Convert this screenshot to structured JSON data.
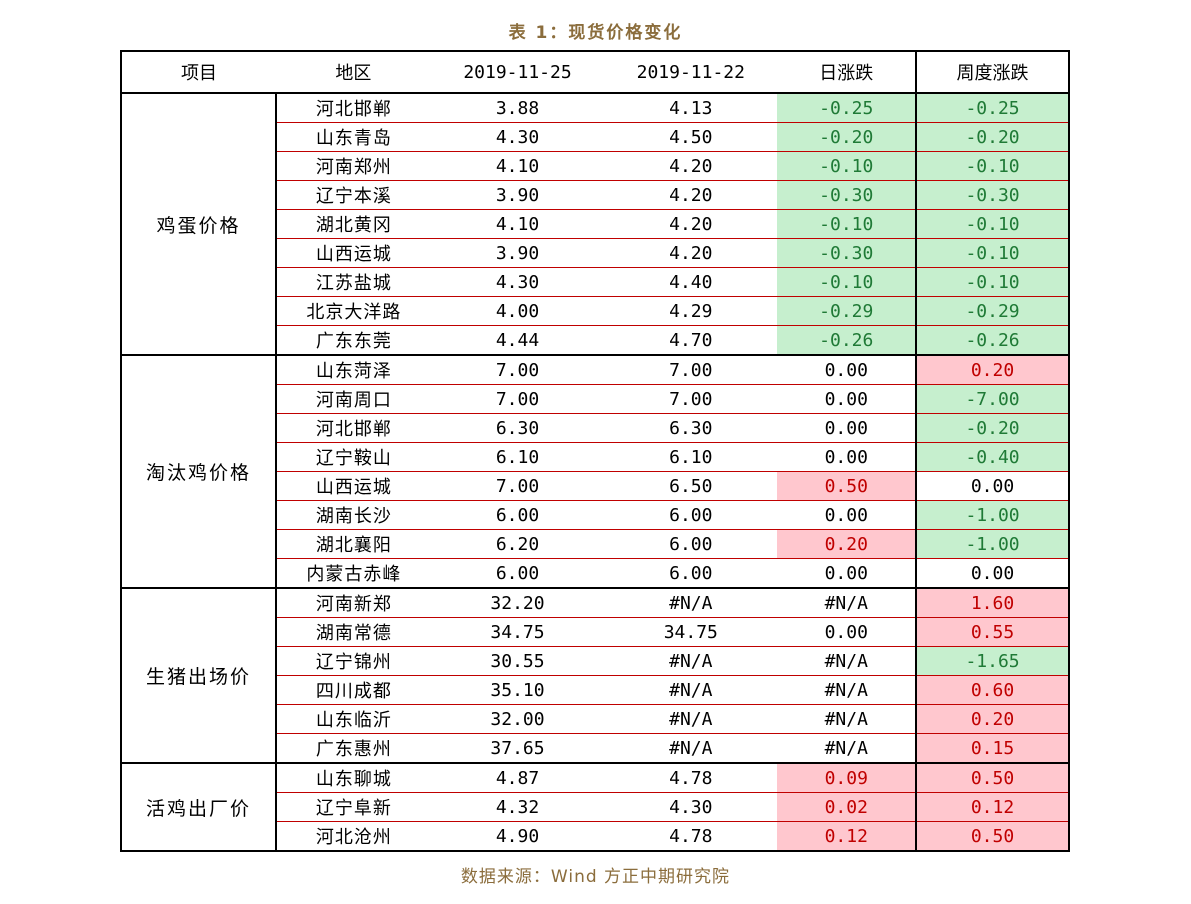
{
  "title": "表 1：现货价格变化",
  "source": "数据来源：Wind 方正中期研究院",
  "headers": {
    "item": "项目",
    "region": "地区",
    "date1": "2019-11-25",
    "date2": "2019-11-22",
    "daily": "日涨跌",
    "weekly": "周度涨跌"
  },
  "colors": {
    "negative_bg": "#c6efce",
    "negative_text": "#1f7a36",
    "positive_bg": "#ffc7ce",
    "positive_text": "#c00000",
    "title_text": "#8b6d3c",
    "row_divider": "#c00000"
  },
  "groups": [
    {
      "name": "鸡蛋价格",
      "rows": [
        {
          "region": "河北邯郸",
          "v1": "3.88",
          "v2": "4.13",
          "daily": "-0.25",
          "daily_dir": "neg",
          "weekly": "-0.25",
          "weekly_dir": "neg"
        },
        {
          "region": "山东青岛",
          "v1": "4.30",
          "v2": "4.50",
          "daily": "-0.20",
          "daily_dir": "neg",
          "weekly": "-0.20",
          "weekly_dir": "neg"
        },
        {
          "region": "河南郑州",
          "v1": "4.10",
          "v2": "4.20",
          "daily": "-0.10",
          "daily_dir": "neg",
          "weekly": "-0.10",
          "weekly_dir": "neg"
        },
        {
          "region": "辽宁本溪",
          "v1": "3.90",
          "v2": "4.20",
          "daily": "-0.30",
          "daily_dir": "neg",
          "weekly": "-0.30",
          "weekly_dir": "neg"
        },
        {
          "region": "湖北黄冈",
          "v1": "4.10",
          "v2": "4.20",
          "daily": "-0.10",
          "daily_dir": "neg",
          "weekly": "-0.10",
          "weekly_dir": "neg"
        },
        {
          "region": "山西运城",
          "v1": "3.90",
          "v2": "4.20",
          "daily": "-0.30",
          "daily_dir": "neg",
          "weekly": "-0.10",
          "weekly_dir": "neg"
        },
        {
          "region": "江苏盐城",
          "v1": "4.30",
          "v2": "4.40",
          "daily": "-0.10",
          "daily_dir": "neg",
          "weekly": "-0.10",
          "weekly_dir": "neg"
        },
        {
          "region": "北京大洋路",
          "v1": "4.00",
          "v2": "4.29",
          "daily": "-0.29",
          "daily_dir": "neg",
          "weekly": "-0.29",
          "weekly_dir": "neg"
        },
        {
          "region": "广东东莞",
          "v1": "4.44",
          "v2": "4.70",
          "daily": "-0.26",
          "daily_dir": "neg",
          "weekly": "-0.26",
          "weekly_dir": "neg"
        }
      ]
    },
    {
      "name": "淘汰鸡价格",
      "rows": [
        {
          "region": "山东菏泽",
          "v1": "7.00",
          "v2": "7.00",
          "daily": "0.00",
          "daily_dir": "zero",
          "weekly": "0.20",
          "weekly_dir": "pos"
        },
        {
          "region": "河南周口",
          "v1": "7.00",
          "v2": "7.00",
          "daily": "0.00",
          "daily_dir": "zero",
          "weekly": "-7.00",
          "weekly_dir": "neg"
        },
        {
          "region": "河北邯郸",
          "v1": "6.30",
          "v2": "6.30",
          "daily": "0.00",
          "daily_dir": "zero",
          "weekly": "-0.20",
          "weekly_dir": "neg"
        },
        {
          "region": "辽宁鞍山",
          "v1": "6.10",
          "v2": "6.10",
          "daily": "0.00",
          "daily_dir": "zero",
          "weekly": "-0.40",
          "weekly_dir": "neg"
        },
        {
          "region": "山西运城",
          "v1": "7.00",
          "v2": "6.50",
          "daily": "0.50",
          "daily_dir": "pos",
          "weekly": "0.00",
          "weekly_dir": "zero"
        },
        {
          "region": "湖南长沙",
          "v1": "6.00",
          "v2": "6.00",
          "daily": "0.00",
          "daily_dir": "zero",
          "weekly": "-1.00",
          "weekly_dir": "neg"
        },
        {
          "region": "湖北襄阳",
          "v1": "6.20",
          "v2": "6.00",
          "daily": "0.20",
          "daily_dir": "pos",
          "weekly": "-1.00",
          "weekly_dir": "neg"
        },
        {
          "region": "内蒙古赤峰",
          "v1": "6.00",
          "v2": "6.00",
          "daily": "0.00",
          "daily_dir": "zero",
          "weekly": "0.00",
          "weekly_dir": "zero"
        }
      ]
    },
    {
      "name": "生猪出场价",
      "rows": [
        {
          "region": "河南新郑",
          "v1": "32.20",
          "v2": "#N/A",
          "daily": "#N/A",
          "daily_dir": "zero",
          "weekly": "1.60",
          "weekly_dir": "pos"
        },
        {
          "region": "湖南常德",
          "v1": "34.75",
          "v2": "34.75",
          "daily": "0.00",
          "daily_dir": "zero",
          "weekly": "0.55",
          "weekly_dir": "pos"
        },
        {
          "region": "辽宁锦州",
          "v1": "30.55",
          "v2": "#N/A",
          "daily": "#N/A",
          "daily_dir": "zero",
          "weekly": "-1.65",
          "weekly_dir": "neg"
        },
        {
          "region": "四川成都",
          "v1": "35.10",
          "v2": "#N/A",
          "daily": "#N/A",
          "daily_dir": "zero",
          "weekly": "0.60",
          "weekly_dir": "pos"
        },
        {
          "region": "山东临沂",
          "v1": "32.00",
          "v2": "#N/A",
          "daily": "#N/A",
          "daily_dir": "zero",
          "weekly": "0.20",
          "weekly_dir": "pos"
        },
        {
          "region": "广东惠州",
          "v1": "37.65",
          "v2": "#N/A",
          "daily": "#N/A",
          "daily_dir": "zero",
          "weekly": "0.15",
          "weekly_dir": "pos"
        }
      ]
    },
    {
      "name": "活鸡出厂价",
      "rows": [
        {
          "region": "山东聊城",
          "v1": "4.87",
          "v2": "4.78",
          "daily": "0.09",
          "daily_dir": "pos",
          "weekly": "0.50",
          "weekly_dir": "pos"
        },
        {
          "region": "辽宁阜新",
          "v1": "4.32",
          "v2": "4.30",
          "daily": "0.02",
          "daily_dir": "pos",
          "weekly": "0.12",
          "weekly_dir": "pos"
        },
        {
          "region": "河北沧州",
          "v1": "4.90",
          "v2": "4.78",
          "daily": "0.12",
          "daily_dir": "pos",
          "weekly": "0.50",
          "weekly_dir": "pos"
        }
      ]
    }
  ]
}
